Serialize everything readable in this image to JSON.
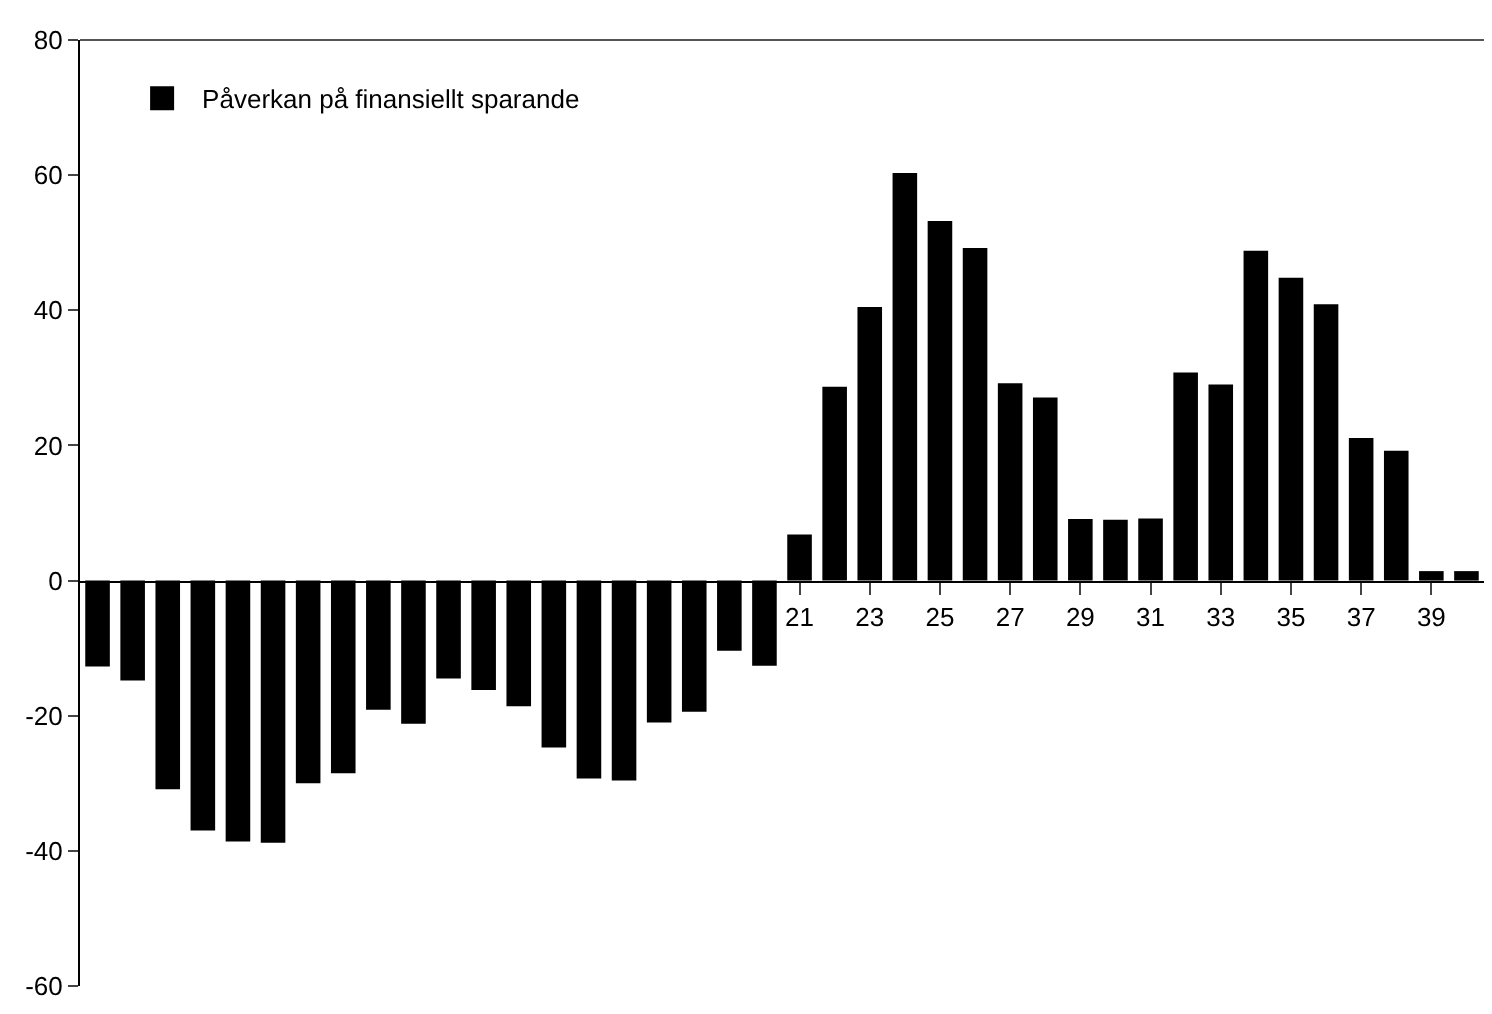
{
  "chart_data": {
    "type": "bar",
    "categories": [
      null,
      null,
      null,
      null,
      null,
      null,
      null,
      null,
      null,
      null,
      null,
      null,
      null,
      null,
      null,
      null,
      null,
      null,
      null,
      null,
      "21",
      null,
      "23",
      null,
      "25",
      null,
      "27",
      null,
      "29",
      null,
      "31",
      null,
      "33",
      null,
      "35",
      null,
      "37",
      null,
      "39",
      null
    ],
    "series": [
      {
        "name": "Påverkan på finansiellt sparande",
        "color": "#000000",
        "values": [
          -12.7,
          -14.8,
          -30.9,
          -37.0,
          -38.6,
          -38.8,
          -30.0,
          -28.5,
          -19.1,
          -21.2,
          -14.5,
          -16.2,
          -18.6,
          -24.7,
          -29.3,
          -29.6,
          -21.0,
          -19.4,
          -10.4,
          -12.6,
          6.8,
          28.7,
          40.5,
          60.3,
          53.2,
          49.2,
          29.2,
          27.1,
          9.1,
          9.0,
          9.2,
          30.8,
          29.0,
          48.8,
          44.8,
          40.9,
          21.1,
          19.2,
          1.4,
          1.4
        ]
      }
    ],
    "ylim": [
      -60,
      80
    ],
    "yticks": [
      -60,
      -40,
      -20,
      0,
      20,
      40,
      60,
      80
    ],
    "legend": "top left"
  }
}
